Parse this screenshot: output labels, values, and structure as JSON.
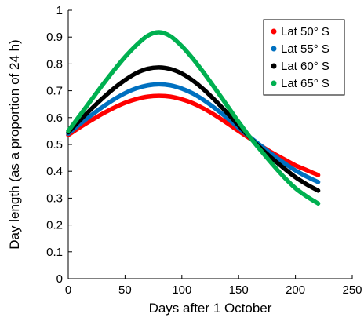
{
  "chart_data": {
    "type": "line",
    "title": "",
    "xlabel": "Days after 1 October",
    "ylabel": "Day length (as a proportion of 24 h)",
    "xlim": [
      0,
      250
    ],
    "ylim": [
      0,
      1
    ],
    "xticks": [
      0,
      50,
      100,
      150,
      200,
      250
    ],
    "yticks": [
      0,
      0.1,
      0.2,
      0.3,
      0.4,
      0.5,
      0.6,
      0.7,
      0.8,
      0.9,
      1
    ],
    "ytick_labels": [
      "0",
      "0.1",
      "0.2",
      "0.3",
      "0.4",
      "0.5",
      "0.6",
      "0.7",
      "0.8",
      "0.9",
      "1"
    ],
    "grid": false,
    "legend_position": "top-right",
    "series": [
      {
        "name": "Lat 50° S",
        "color": "#ff0000",
        "x": [
          0,
          10,
          20,
          30,
          40,
          50,
          60,
          70,
          80,
          90,
          100,
          110,
          120,
          130,
          140,
          150,
          160,
          170,
          180,
          190,
          200,
          210,
          220
        ],
        "y": [
          0.535,
          0.563,
          0.589,
          0.614,
          0.636,
          0.655,
          0.669,
          0.678,
          0.681,
          0.678,
          0.668,
          0.653,
          0.632,
          0.607,
          0.579,
          0.55,
          0.522,
          0.494,
          0.468,
          0.445,
          0.422,
          0.404,
          0.386
        ]
      },
      {
        "name": "Lat 55° S",
        "color": "#0070c0",
        "x": [
          0,
          10,
          20,
          30,
          40,
          50,
          60,
          70,
          80,
          90,
          100,
          110,
          120,
          130,
          140,
          150,
          160,
          170,
          180,
          190,
          200,
          210,
          220
        ],
        "y": [
          0.54,
          0.575,
          0.608,
          0.639,
          0.667,
          0.691,
          0.709,
          0.72,
          0.724,
          0.72,
          0.708,
          0.689,
          0.663,
          0.632,
          0.598,
          0.562,
          0.527,
          0.494,
          0.461,
          0.431,
          0.403,
          0.38,
          0.36
        ]
      },
      {
        "name": "Lat 60° S",
        "color": "#000000",
        "x": [
          0,
          10,
          20,
          30,
          40,
          50,
          60,
          70,
          80,
          90,
          100,
          110,
          120,
          130,
          140,
          150,
          160,
          170,
          180,
          190,
          200,
          210,
          220
        ],
        "y": [
          0.545,
          0.589,
          0.631,
          0.671,
          0.708,
          0.74,
          0.766,
          0.782,
          0.787,
          0.781,
          0.764,
          0.737,
          0.702,
          0.661,
          0.617,
          0.571,
          0.526,
          0.484,
          0.446,
          0.411,
          0.378,
          0.351,
          0.328
        ]
      },
      {
        "name": "Lat 65° S",
        "color": "#00b050",
        "x": [
          0,
          10,
          20,
          30,
          40,
          50,
          60,
          70,
          80,
          90,
          100,
          110,
          120,
          130,
          140,
          150,
          160,
          170,
          180,
          190,
          200,
          210,
          220
        ],
        "y": [
          0.55,
          0.607,
          0.664,
          0.721,
          0.775,
          0.826,
          0.87,
          0.905,
          0.918,
          0.903,
          0.866,
          0.818,
          0.763,
          0.704,
          0.644,
          0.584,
          0.527,
          0.475,
          0.425,
          0.378,
          0.337,
          0.306,
          0.28
        ]
      }
    ]
  }
}
